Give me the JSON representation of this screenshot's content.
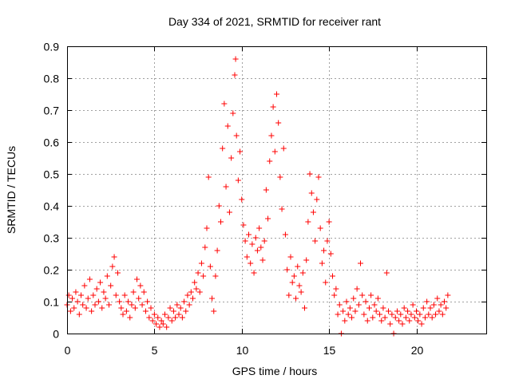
{
  "chart_data": {
    "type": "scatter",
    "title": "Day 334 of 2021, SRMTID for receiver rant",
    "xlabel": "GPS time / hours",
    "ylabel": "SRMTID / TECUs",
    "xlim": [
      0,
      24
    ],
    "ylim": [
      0,
      0.9
    ],
    "xticks": [
      0,
      5,
      10,
      15,
      20
    ],
    "xtick_labels": [
      "0",
      "5",
      "10",
      "15",
      "20"
    ],
    "yticks": [
      0,
      0.1,
      0.2,
      0.3,
      0.4,
      0.5,
      0.6,
      0.7,
      0.8,
      0.9
    ],
    "ytick_labels": [
      "0",
      "0.1",
      "0.2",
      "0.3",
      "0.4",
      "0.5",
      "0.6",
      "0.7",
      "0.8",
      "0.9"
    ],
    "grid": true,
    "marker": "+",
    "marker_color": "#ff0000",
    "series": [
      {
        "name": "SRMTID",
        "points": [
          [
            0.0,
            0.09
          ],
          [
            0.1,
            0.12
          ],
          [
            0.2,
            0.07
          ],
          [
            0.3,
            0.11
          ],
          [
            0.4,
            0.08
          ],
          [
            0.5,
            0.13
          ],
          [
            0.6,
            0.1
          ],
          [
            0.7,
            0.06
          ],
          [
            0.8,
            0.12
          ],
          [
            0.9,
            0.09
          ],
          [
            1.0,
            0.15
          ],
          [
            1.1,
            0.08
          ],
          [
            1.2,
            0.11
          ],
          [
            1.3,
            0.17
          ],
          [
            1.4,
            0.07
          ],
          [
            1.5,
            0.12
          ],
          [
            1.6,
            0.09
          ],
          [
            1.7,
            0.14
          ],
          [
            1.8,
            0.1
          ],
          [
            1.9,
            0.16
          ],
          [
            2.0,
            0.08
          ],
          [
            2.1,
            0.13
          ],
          [
            2.2,
            0.11
          ],
          [
            2.3,
            0.18
          ],
          [
            2.4,
            0.09
          ],
          [
            2.5,
            0.15
          ],
          [
            2.6,
            0.21
          ],
          [
            2.7,
            0.24
          ],
          [
            2.8,
            0.12
          ],
          [
            2.9,
            0.19
          ],
          [
            3.0,
            0.1
          ],
          [
            3.1,
            0.08
          ],
          [
            3.2,
            0.06
          ],
          [
            3.3,
            0.12
          ],
          [
            3.4,
            0.07
          ],
          [
            3.5,
            0.1
          ],
          [
            3.6,
            0.05
          ],
          [
            3.7,
            0.09
          ],
          [
            3.8,
            0.13
          ],
          [
            3.9,
            0.08
          ],
          [
            4.0,
            0.17
          ],
          [
            4.1,
            0.11
          ],
          [
            4.2,
            0.15
          ],
          [
            4.3,
            0.09
          ],
          [
            4.4,
            0.13
          ],
          [
            4.5,
            0.07
          ],
          [
            4.6,
            0.1
          ],
          [
            4.7,
            0.05
          ],
          [
            4.8,
            0.08
          ],
          [
            4.9,
            0.04
          ],
          [
            5.0,
            0.06
          ],
          [
            5.1,
            0.03
          ],
          [
            5.2,
            0.05
          ],
          [
            5.3,
            0.02
          ],
          [
            5.4,
            0.04
          ],
          [
            5.5,
            0.03
          ],
          [
            5.6,
            0.06
          ],
          [
            5.7,
            0.02
          ],
          [
            5.8,
            0.05
          ],
          [
            5.9,
            0.08
          ],
          [
            6.0,
            0.04
          ],
          [
            6.1,
            0.07
          ],
          [
            6.2,
            0.05
          ],
          [
            6.3,
            0.09
          ],
          [
            6.4,
            0.06
          ],
          [
            6.5,
            0.08
          ],
          [
            6.6,
            0.05
          ],
          [
            6.7,
            0.1
          ],
          [
            6.8,
            0.07
          ],
          [
            6.9,
            0.12
          ],
          [
            7.0,
            0.09
          ],
          [
            7.1,
            0.13
          ],
          [
            7.2,
            0.11
          ],
          [
            7.3,
            0.16
          ],
          [
            7.4,
            0.14
          ],
          [
            7.5,
            0.19
          ],
          [
            7.6,
            0.13
          ],
          [
            7.7,
            0.22
          ],
          [
            7.8,
            0.18
          ],
          [
            7.9,
            0.27
          ],
          [
            8.0,
            0.33
          ],
          [
            8.1,
            0.49
          ],
          [
            8.2,
            0.21
          ],
          [
            8.3,
            0.11
          ],
          [
            8.4,
            0.07
          ],
          [
            8.5,
            0.18
          ],
          [
            8.6,
            0.26
          ],
          [
            8.7,
            0.4
          ],
          [
            8.8,
            0.35
          ],
          [
            8.9,
            0.58
          ],
          [
            9.0,
            0.72
          ],
          [
            9.1,
            0.46
          ],
          [
            9.2,
            0.65
          ],
          [
            9.3,
            0.38
          ],
          [
            9.4,
            0.55
          ],
          [
            9.5,
            0.69
          ],
          [
            9.6,
            0.81
          ],
          [
            9.65,
            0.86
          ],
          [
            9.7,
            0.62
          ],
          [
            9.8,
            0.48
          ],
          [
            9.9,
            0.57
          ],
          [
            10.0,
            0.42
          ],
          [
            10.1,
            0.34
          ],
          [
            10.2,
            0.29
          ],
          [
            10.3,
            0.24
          ],
          [
            10.4,
            0.31
          ],
          [
            10.5,
            0.22
          ],
          [
            10.6,
            0.28
          ],
          [
            10.7,
            0.19
          ],
          [
            10.8,
            0.3
          ],
          [
            10.9,
            0.26
          ],
          [
            11.0,
            0.33
          ],
          [
            11.1,
            0.27
          ],
          [
            11.2,
            0.23
          ],
          [
            11.3,
            0.29
          ],
          [
            11.4,
            0.45
          ],
          [
            11.5,
            0.36
          ],
          [
            11.6,
            0.54
          ],
          [
            11.7,
            0.62
          ],
          [
            11.8,
            0.71
          ],
          [
            11.9,
            0.57
          ],
          [
            12.0,
            0.75
          ],
          [
            12.1,
            0.66
          ],
          [
            12.2,
            0.49
          ],
          [
            12.3,
            0.39
          ],
          [
            12.4,
            0.58
          ],
          [
            12.5,
            0.31
          ],
          [
            12.6,
            0.2
          ],
          [
            12.7,
            0.12
          ],
          [
            12.8,
            0.24
          ],
          [
            12.9,
            0.16
          ],
          [
            13.0,
            0.18
          ],
          [
            13.1,
            0.11
          ],
          [
            13.2,
            0.21
          ],
          [
            13.3,
            0.15
          ],
          [
            13.4,
            0.13
          ],
          [
            13.5,
            0.19
          ],
          [
            13.6,
            0.08
          ],
          [
            13.7,
            0.23
          ],
          [
            13.8,
            0.35
          ],
          [
            13.9,
            0.5
          ],
          [
            14.0,
            0.44
          ],
          [
            14.1,
            0.38
          ],
          [
            14.2,
            0.29
          ],
          [
            14.3,
            0.42
          ],
          [
            14.4,
            0.49
          ],
          [
            14.5,
            0.33
          ],
          [
            14.6,
            0.22
          ],
          [
            14.7,
            0.26
          ],
          [
            14.8,
            0.16
          ],
          [
            14.9,
            0.29
          ],
          [
            15.0,
            0.35
          ],
          [
            15.1,
            0.25
          ],
          [
            15.2,
            0.18
          ],
          [
            15.3,
            0.12
          ],
          [
            15.4,
            0.14
          ],
          [
            15.5,
            0.06
          ],
          [
            15.6,
            0.09
          ],
          [
            15.7,
            0.0
          ],
          [
            15.8,
            0.07
          ],
          [
            15.9,
            0.04
          ],
          [
            16.0,
            0.1
          ],
          [
            16.1,
            0.06
          ],
          [
            16.2,
            0.08
          ],
          [
            16.3,
            0.05
          ],
          [
            16.4,
            0.11
          ],
          [
            16.5,
            0.07
          ],
          [
            16.6,
            0.14
          ],
          [
            16.7,
            0.09
          ],
          [
            16.8,
            0.22
          ],
          [
            16.9,
            0.12
          ],
          [
            17.0,
            0.06
          ],
          [
            17.1,
            0.1
          ],
          [
            17.2,
            0.04
          ],
          [
            17.3,
            0.08
          ],
          [
            17.4,
            0.12
          ],
          [
            17.5,
            0.05
          ],
          [
            17.6,
            0.09
          ],
          [
            17.7,
            0.07
          ],
          [
            17.8,
            0.11
          ],
          [
            17.9,
            0.06
          ],
          [
            18.0,
            0.04
          ],
          [
            18.1,
            0.08
          ],
          [
            18.2,
            0.05
          ],
          [
            18.3,
            0.19
          ],
          [
            18.4,
            0.07
          ],
          [
            18.5,
            0.03
          ],
          [
            18.6,
            0.06
          ],
          [
            18.7,
            0.0
          ],
          [
            18.8,
            0.05
          ],
          [
            18.9,
            0.07
          ],
          [
            19.0,
            0.04
          ],
          [
            19.1,
            0.06
          ],
          [
            19.2,
            0.03
          ],
          [
            19.3,
            0.08
          ],
          [
            19.4,
            0.05
          ],
          [
            19.5,
            0.07
          ],
          [
            19.6,
            0.04
          ],
          [
            19.7,
            0.06
          ],
          [
            19.8,
            0.09
          ],
          [
            19.9,
            0.05
          ],
          [
            20.0,
            0.07
          ],
          [
            20.1,
            0.04
          ],
          [
            20.2,
            0.06
          ],
          [
            20.3,
            0.03
          ],
          [
            20.4,
            0.08
          ],
          [
            20.5,
            0.05
          ],
          [
            20.6,
            0.1
          ],
          [
            20.7,
            0.06
          ],
          [
            20.8,
            0.08
          ],
          [
            20.9,
            0.05
          ],
          [
            21.0,
            0.09
          ],
          [
            21.1,
            0.06
          ],
          [
            21.2,
            0.11
          ],
          [
            21.3,
            0.07
          ],
          [
            21.4,
            0.09
          ],
          [
            21.5,
            0.06
          ],
          [
            21.6,
            0.1
          ],
          [
            21.7,
            0.08
          ],
          [
            21.8,
            0.12
          ]
        ]
      }
    ]
  }
}
